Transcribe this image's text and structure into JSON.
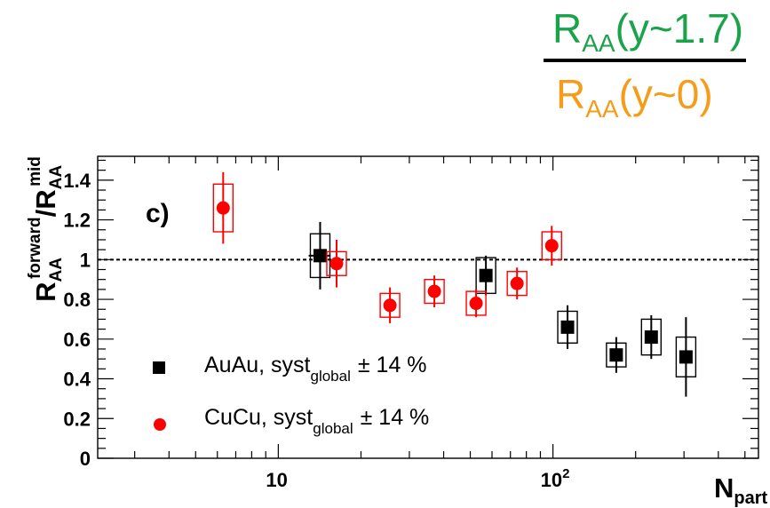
{
  "header": {
    "numerator": {
      "main": "R",
      "sub": "AA",
      "tail": "(y~1.7)",
      "color": "#1aa34a"
    },
    "denominator": {
      "main": "R",
      "sub": "AA",
      "tail": "(y~0)",
      "color": "#f59c1a"
    }
  },
  "chart_data": {
    "type": "scatter",
    "panel_label": "c)",
    "xlabel": {
      "main": "N",
      "sub": "part"
    },
    "ylabel": {
      "main": "R",
      "sub": "AA",
      "sup": "forward",
      "sep": "/",
      "main2": "R",
      "sub2": "AA",
      "sup2": "mid"
    },
    "x_scale": "log",
    "xlim": [
      2.2,
      560
    ],
    "ylim": [
      0,
      1.52
    ],
    "x_tick_labels": [
      {
        "value": 10,
        "label": "10"
      },
      {
        "value": 100,
        "label": "10",
        "exponent": "2"
      }
    ],
    "y_ticks": [
      0,
      0.2,
      0.4,
      0.6,
      0.8,
      1,
      1.2,
      1.4
    ],
    "y_tick_labels": [
      "0",
      "0.2",
      "0.4",
      "0.6",
      "0.8",
      "1",
      "1.2",
      "1.4"
    ],
    "reference_line": 1.0,
    "series": [
      {
        "name": "AuAu",
        "legend_prefix": "AuAu, syst",
        "legend_sub": "global",
        "legend_suffix": "± 14 %",
        "marker": "square",
        "color": "#000000",
        "points": [
          {
            "x": 14.2,
            "y": 1.02,
            "stat": 0.17,
            "syst": 0.11,
            "xerr": 1.3
          },
          {
            "x": 57,
            "y": 0.92,
            "stat": 0.1,
            "syst": 0.09
          },
          {
            "x": 113,
            "y": 0.66,
            "stat": 0.11,
            "syst": 0.08
          },
          {
            "x": 170,
            "y": 0.52,
            "stat": 0.09,
            "syst": 0.06
          },
          {
            "x": 228,
            "y": 0.61,
            "stat": 0.11,
            "syst": 0.09
          },
          {
            "x": 305,
            "y": 0.51,
            "stat": 0.2,
            "syst": 0.1
          }
        ]
      },
      {
        "name": "CuCu",
        "legend_prefix": "CuCu, syst",
        "legend_sub": "global",
        "legend_suffix": "± 14 %",
        "marker": "circle",
        "color": "#ff0000",
        "points": [
          {
            "x": 6.3,
            "y": 1.26,
            "stat": 0.18,
            "syst": 0.12
          },
          {
            "x": 16.3,
            "y": 0.98,
            "stat": 0.12,
            "syst": 0.06
          },
          {
            "x": 25.5,
            "y": 0.77,
            "stat": 0.09,
            "syst": 0.06
          },
          {
            "x": 37,
            "y": 0.84,
            "stat": 0.08,
            "syst": 0.06
          },
          {
            "x": 52.5,
            "y": 0.78,
            "stat": 0.07,
            "syst": 0.06
          },
          {
            "x": 74,
            "y": 0.88,
            "stat": 0.08,
            "syst": 0.06
          },
          {
            "x": 99,
            "y": 1.07,
            "stat": 0.1,
            "syst": 0.07
          }
        ]
      }
    ]
  }
}
